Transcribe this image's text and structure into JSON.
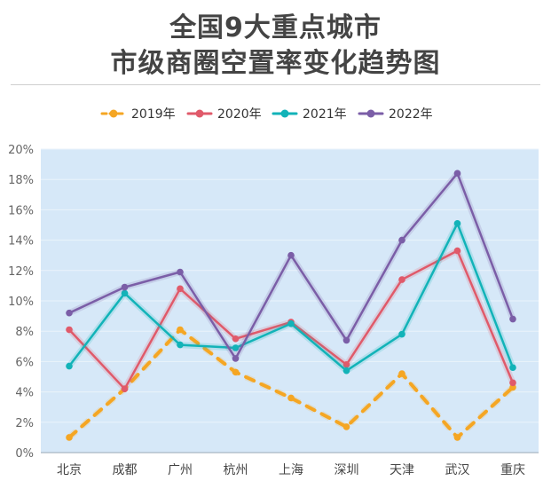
{
  "header": {
    "title_line1": "全国9大重点城市",
    "title_line2": "市级商圈空置率变化趋势图"
  },
  "chart_data": {
    "type": "line",
    "categories": [
      "北京",
      "成都",
      "广州",
      "杭州",
      "上海",
      "深圳",
      "天津",
      "武汉",
      "重庆"
    ],
    "series": [
      {
        "name": "2019年",
        "color": "#F5A623",
        "dashed": true,
        "values": [
          1.0,
          4.2,
          8.1,
          5.3,
          3.6,
          1.7,
          5.2,
          1.0,
          4.3
        ]
      },
      {
        "name": "2020年",
        "color": "#E05A6A",
        "dashed": false,
        "values": [
          8.1,
          4.2,
          10.8,
          7.5,
          8.6,
          5.8,
          11.4,
          13.3,
          4.6
        ]
      },
      {
        "name": "2021年",
        "color": "#12B3B8",
        "dashed": false,
        "values": [
          5.7,
          10.5,
          7.1,
          6.9,
          8.5,
          5.4,
          7.8,
          15.1,
          5.6
        ]
      },
      {
        "name": "2022年",
        "color": "#7B5EA7",
        "dashed": false,
        "values": [
          9.2,
          10.9,
          11.9,
          6.2,
          13.0,
          7.4,
          14.0,
          18.4,
          8.8
        ]
      }
    ],
    "yticks": [
      "0%",
      "2%",
      "4%",
      "6%",
      "8%",
      "10%",
      "12%",
      "14%",
      "16%",
      "18%",
      "20%"
    ],
    "ylim": [
      0,
      20
    ],
    "grid": true,
    "legend_position": "top-center",
    "plot_background": "#D6E8F8"
  }
}
